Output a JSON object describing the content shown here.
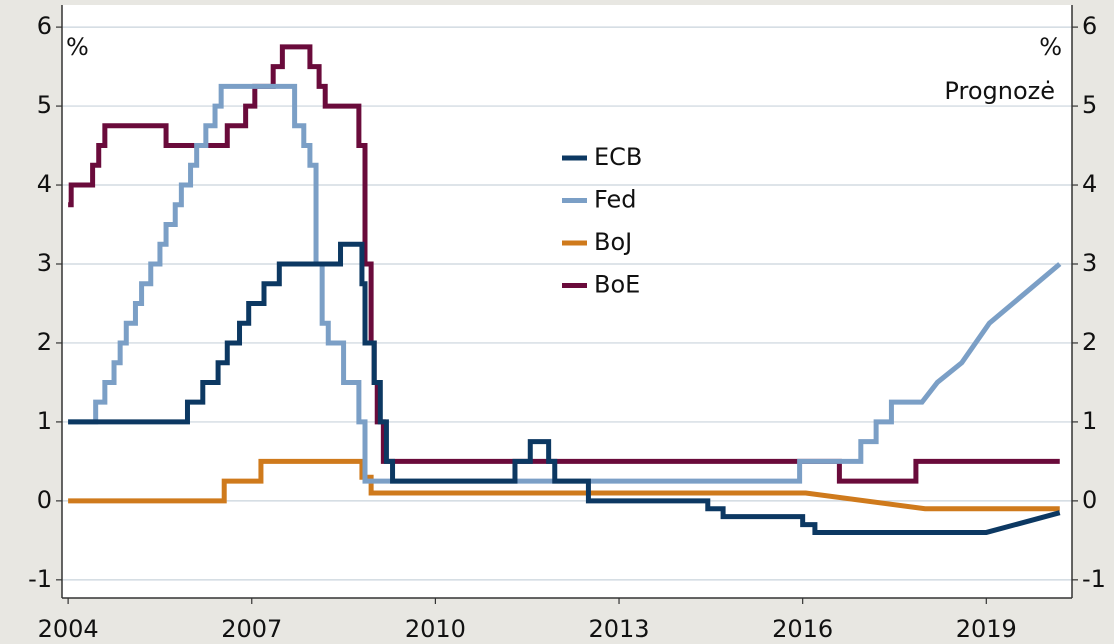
{
  "chart_data": {
    "type": "line",
    "annotations": [
      "%",
      "%",
      "Prognozė"
    ],
    "xlim": [
      2003.9,
      2020.4
    ],
    "xticks": [
      2004,
      2007,
      2010,
      2013,
      2016,
      2019
    ],
    "ylim": [
      -1.23,
      6.28
    ],
    "yticks": [
      -1,
      0,
      1,
      2,
      3,
      4,
      5,
      6
    ],
    "y2lim": [
      -1.23,
      6.28
    ],
    "y2ticks": [
      -1,
      0,
      1,
      2,
      3,
      4,
      5,
      6
    ],
    "grid": true,
    "series": [
      {
        "name": "ECB",
        "color": "#0c3862",
        "x": [
          2004.0,
          2005.95,
          2005.95,
          2006.2,
          2006.2,
          2006.45,
          2006.45,
          2006.6,
          2006.6,
          2006.8,
          2006.8,
          2006.95,
          2006.95,
          2007.2,
          2007.2,
          2007.45,
          2007.45,
          2008.45,
          2008.45,
          2008.8,
          2008.8,
          2008.85,
          2008.85,
          2009.0,
          2009.0,
          2009.1,
          2009.1,
          2009.2,
          2009.2,
          2009.3,
          2009.3,
          2011.3,
          2011.3,
          2011.55,
          2011.55,
          2011.85,
          2011.85,
          2011.95,
          2011.95,
          2012.5,
          2012.5,
          2014.45,
          2014.45,
          2014.7,
          2014.7,
          2016.0,
          2016.0,
          2016.2,
          2016.2,
          2019.0,
          2020.2
        ],
        "values": [
          1.0,
          1.0,
          1.25,
          1.25,
          1.5,
          1.5,
          1.75,
          1.75,
          2.0,
          2.0,
          2.25,
          2.25,
          2.5,
          2.5,
          2.75,
          2.75,
          3.0,
          3.0,
          3.25,
          3.25,
          2.75,
          2.75,
          2.0,
          2.0,
          1.5,
          1.5,
          1.0,
          1.0,
          0.5,
          0.5,
          0.25,
          0.25,
          0.5,
          0.5,
          0.75,
          0.75,
          0.5,
          0.5,
          0.25,
          0.25,
          0.0,
          0.0,
          -0.1,
          -0.1,
          -0.2,
          -0.2,
          -0.3,
          -0.3,
          -0.4,
          -0.4,
          -0.15
        ]
      },
      {
        "name": "Fed",
        "color": "#7b9fc6",
        "x": [
          2004.0,
          2004.45,
          2004.45,
          2004.6,
          2004.6,
          2004.75,
          2004.75,
          2004.85,
          2004.85,
          2004.95,
          2004.95,
          2005.1,
          2005.1,
          2005.2,
          2005.2,
          2005.35,
          2005.35,
          2005.5,
          2005.5,
          2005.6,
          2005.6,
          2005.75,
          2005.75,
          2005.85,
          2005.85,
          2006.0,
          2006.0,
          2006.1,
          2006.1,
          2006.25,
          2006.25,
          2006.4,
          2006.4,
          2006.5,
          2006.5,
          2007.7,
          2007.7,
          2007.85,
          2007.85,
          2007.95,
          2007.95,
          2008.05,
          2008.05,
          2008.15,
          2008.15,
          2008.25,
          2008.25,
          2008.5,
          2008.5,
          2008.75,
          2008.75,
          2008.85,
          2008.85,
          2015.95,
          2015.95,
          2016.95,
          2016.95,
          2017.2,
          2017.2,
          2017.45,
          2017.45,
          2017.95,
          2018.2,
          2018.6,
          2019.05,
          2020.2
        ],
        "values": [
          1.0,
          1.0,
          1.25,
          1.25,
          1.5,
          1.5,
          1.75,
          1.75,
          2.0,
          2.0,
          2.25,
          2.25,
          2.5,
          2.5,
          2.75,
          2.75,
          3.0,
          3.0,
          3.25,
          3.25,
          3.5,
          3.5,
          3.75,
          3.75,
          4.0,
          4.0,
          4.25,
          4.25,
          4.5,
          4.5,
          4.75,
          4.75,
          5.0,
          5.0,
          5.25,
          5.25,
          4.75,
          4.75,
          4.5,
          4.5,
          4.25,
          4.25,
          3.0,
          3.0,
          2.25,
          2.25,
          2.0,
          2.0,
          1.5,
          1.5,
          1.0,
          1.0,
          0.25,
          0.25,
          0.5,
          0.5,
          0.75,
          0.75,
          1.0,
          1.0,
          1.25,
          1.25,
          1.5,
          1.75,
          2.25,
          3.0
        ]
      },
      {
        "name": "BoJ",
        "color": "#cf7a1c",
        "x": [
          2004.0,
          2006.55,
          2006.55,
          2007.15,
          2007.15,
          2008.8,
          2008.8,
          2008.95,
          2008.95,
          2016.05,
          2018.0,
          2020.2
        ],
        "values": [
          0.0,
          0.0,
          0.25,
          0.25,
          0.5,
          0.5,
          0.3,
          0.3,
          0.1,
          0.1,
          -0.1,
          -0.1
        ]
      },
      {
        "name": "BoE",
        "color": "#6a0b3b",
        "x": [
          2004.0,
          2004.05,
          2004.05,
          2004.4,
          2004.4,
          2004.5,
          2004.5,
          2004.6,
          2004.6,
          2005.6,
          2005.6,
          2006.6,
          2006.6,
          2006.9,
          2006.9,
          2007.05,
          2007.05,
          2007.35,
          2007.35,
          2007.5,
          2007.5,
          2007.95,
          2007.95,
          2008.1,
          2008.1,
          2008.2,
          2008.2,
          2008.75,
          2008.75,
          2008.85,
          2008.85,
          2008.95,
          2008.95,
          2009.0,
          2009.0,
          2009.05,
          2009.05,
          2009.15,
          2009.15,
          2016.6,
          2016.6,
          2017.85,
          2017.85,
          2020.2
        ],
        "values": [
          3.75,
          3.75,
          4.0,
          4.0,
          4.25,
          4.25,
          4.5,
          4.5,
          4.75,
          4.75,
          4.5,
          4.5,
          4.75,
          4.75,
          5.0,
          5.0,
          5.25,
          5.25,
          5.5,
          5.5,
          5.75,
          5.75,
          5.5,
          5.5,
          5.25,
          5.25,
          5.0,
          5.0,
          4.5,
          4.5,
          3.0,
          3.0,
          2.0,
          2.0,
          1.5,
          1.5,
          1.0,
          1.0,
          0.5,
          0.5,
          0.25,
          0.25,
          0.5,
          0.5
        ]
      }
    ]
  }
}
